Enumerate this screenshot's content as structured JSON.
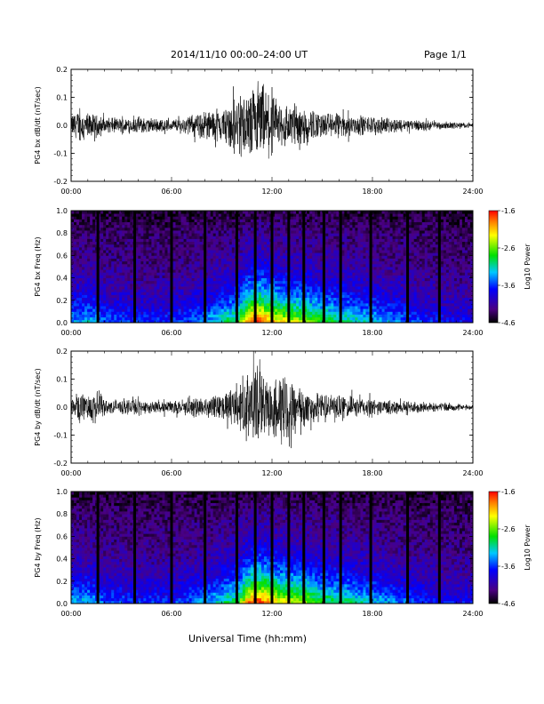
{
  "header": {
    "title": "2014/11/10   00:00–24:00 UT",
    "page": "Page 1/1"
  },
  "x_axis_title": "Universal Time (hh:mm)",
  "chart_data": [
    {
      "type": "line",
      "ylabel": "PG4 bx dB/dt (nT/sec)",
      "xlim": [
        "00:00",
        "24:00"
      ],
      "xticks": [
        "00:00",
        "06:00",
        "12:00",
        "18:00",
        "24:00"
      ],
      "ylim": [
        -0.2,
        0.2
      ],
      "yticks": [
        "-0.2",
        "-0.1",
        "0.0",
        "0.1",
        "0.2"
      ],
      "series_color": "#000000",
      "envelope": {
        "hours": [
          0,
          0.5,
          1,
          2,
          3,
          4,
          5,
          6,
          7,
          8,
          9,
          9.5,
          10,
          10.5,
          11,
          11.5,
          12,
          12.5,
          13,
          13.5,
          14,
          15,
          16,
          17,
          18,
          19,
          20,
          21,
          22,
          23,
          24
        ],
        "amplitude": [
          0.05,
          0.08,
          0.06,
          0.04,
          0.035,
          0.04,
          0.035,
          0.03,
          0.045,
          0.07,
          0.08,
          0.1,
          0.18,
          0.14,
          0.2,
          0.17,
          0.14,
          0.12,
          0.11,
          0.1,
          0.09,
          0.06,
          0.06,
          0.05,
          0.04,
          0.035,
          0.03,
          0.025,
          0.02,
          0.015,
          0.01
        ]
      }
    },
    {
      "type": "heatmap",
      "ylabel": "PG4 bx Freq (Hz)",
      "xlim": [
        "00:00",
        "24:00"
      ],
      "xticks": [
        "00:00",
        "06:00",
        "12:00",
        "18:00",
        "24:00"
      ],
      "ylim": [
        0.0,
        1.0
      ],
      "yticks": [
        "0.0",
        "0.2",
        "0.4",
        "0.6",
        "0.8",
        "1.0"
      ],
      "colorbar": {
        "label": "Log10 Power",
        "ticks": [
          "-1.6",
          "-2.6",
          "-3.6",
          "-4.6"
        ],
        "range": [
          -4.6,
          -1.6
        ]
      },
      "data_gaps_hours": [
        1.6,
        3.8,
        6.0,
        8.0,
        9.9,
        11.0,
        12.0,
        13.0,
        13.9,
        15.1,
        16.1,
        17.9,
        20.1,
        22.0
      ],
      "activity_profile": {
        "hours": [
          0,
          1,
          2,
          4,
          6,
          8,
          9,
          10,
          10.5,
          11,
          11.5,
          12,
          13,
          14,
          15,
          16,
          18,
          20,
          22,
          24
        ],
        "level": [
          0.35,
          0.4,
          0.3,
          0.25,
          0.25,
          0.35,
          0.45,
          0.55,
          0.8,
          0.95,
          0.9,
          0.8,
          0.7,
          0.65,
          0.55,
          0.5,
          0.4,
          0.3,
          0.22,
          0.2
        ]
      }
    },
    {
      "type": "line",
      "ylabel": "PG4 by dB/dt (nT/sec)",
      "xlim": [
        "00:00",
        "24:00"
      ],
      "xticks": [
        "00:00",
        "06:00",
        "12:00",
        "18:00",
        "24:00"
      ],
      "ylim": [
        -0.2,
        0.2
      ],
      "yticks": [
        "-0.2",
        "-0.1",
        "0.0",
        "0.1",
        "0.2"
      ],
      "series_color": "#000000",
      "envelope": {
        "hours": [
          0,
          0.5,
          1,
          1.5,
          2,
          3,
          4,
          5,
          6,
          7,
          8,
          9,
          9.5,
          10,
          10.5,
          11,
          11.5,
          12,
          12.5,
          13,
          13.5,
          14,
          15,
          16,
          17,
          18,
          19,
          20,
          21,
          22,
          23,
          24
        ],
        "amplitude": [
          0.05,
          0.08,
          0.06,
          0.1,
          0.04,
          0.035,
          0.035,
          0.03,
          0.03,
          0.04,
          0.05,
          0.06,
          0.08,
          0.13,
          0.16,
          0.2,
          0.14,
          0.13,
          0.19,
          0.14,
          0.11,
          0.09,
          0.06,
          0.06,
          0.05,
          0.04,
          0.035,
          0.03,
          0.025,
          0.02,
          0.015,
          0.01
        ]
      }
    },
    {
      "type": "heatmap",
      "ylabel": "PG4 by Freq (Hz)",
      "xlim": [
        "00:00",
        "24:00"
      ],
      "xticks": [
        "00:00",
        "06:00",
        "12:00",
        "18:00",
        "24:00"
      ],
      "ylim": [
        0.0,
        1.0
      ],
      "yticks": [
        "0.0",
        "0.2",
        "0.4",
        "0.6",
        "0.8",
        "1.0"
      ],
      "colorbar": {
        "label": "Log10 Power",
        "ticks": [
          "-1.6",
          "-2.6",
          "-3.6",
          "-4.6"
        ],
        "range": [
          -4.6,
          -1.6
        ]
      },
      "data_gaps_hours": [
        1.6,
        3.8,
        6.0,
        8.0,
        9.9,
        11.0,
        12.0,
        13.0,
        13.9,
        15.1,
        16.1,
        17.9,
        20.1,
        22.0
      ],
      "activity_profile": {
        "hours": [
          0,
          1,
          2,
          4,
          6,
          8,
          9,
          10,
          10.5,
          11,
          11.5,
          12,
          13,
          14,
          15,
          16,
          18,
          20,
          22,
          24
        ],
        "level": [
          0.35,
          0.4,
          0.3,
          0.25,
          0.25,
          0.35,
          0.45,
          0.55,
          0.8,
          0.95,
          0.9,
          0.8,
          0.7,
          0.65,
          0.55,
          0.5,
          0.4,
          0.3,
          0.22,
          0.2
        ]
      }
    }
  ]
}
